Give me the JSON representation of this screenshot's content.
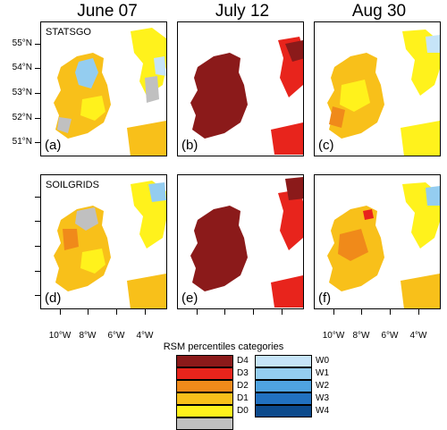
{
  "columns": [
    "June 07",
    "July 12",
    "Aug 30"
  ],
  "panels": [
    {
      "label": "(a)",
      "dataset": "STATSGO",
      "month": "June 07"
    },
    {
      "label": "(b)",
      "dataset": "",
      "month": "July 12"
    },
    {
      "label": "(c)",
      "dataset": "",
      "month": "Aug 30"
    },
    {
      "label": "(d)",
      "dataset": "SOILGRIDS",
      "month": "June 07"
    },
    {
      "label": "(e)",
      "dataset": "",
      "month": "July 12"
    },
    {
      "label": "(f)",
      "dataset": "",
      "month": "Aug 30"
    }
  ],
  "lat_ticks": [
    "55°N",
    "54°N",
    "53°N",
    "52°N",
    "51°N"
  ],
  "lon_ticks": [
    "10°W",
    "8°W",
    "6°W",
    "4°W"
  ],
  "legend": {
    "title": "RSM percentiles categories",
    "dry": [
      {
        "label": "D4",
        "color": "#8b1a1a"
      },
      {
        "label": "D3",
        "color": "#e8241c"
      },
      {
        "label": "D2",
        "color": "#f08a1a"
      },
      {
        "label": "D1",
        "color": "#f8c01a"
      },
      {
        "label": "D0",
        "color": "#fff21c"
      },
      {
        "label": "",
        "color": "#c0c0c0"
      }
    ],
    "wet": [
      {
        "label": "W0",
        "color": "#c6e4f8"
      },
      {
        "label": "W1",
        "color": "#94cdf0"
      },
      {
        "label": "W2",
        "color": "#4fa3e0"
      },
      {
        "label": "W3",
        "color": "#2171c0"
      },
      {
        "label": "W4",
        "color": "#0c4a8c"
      }
    ]
  }
}
